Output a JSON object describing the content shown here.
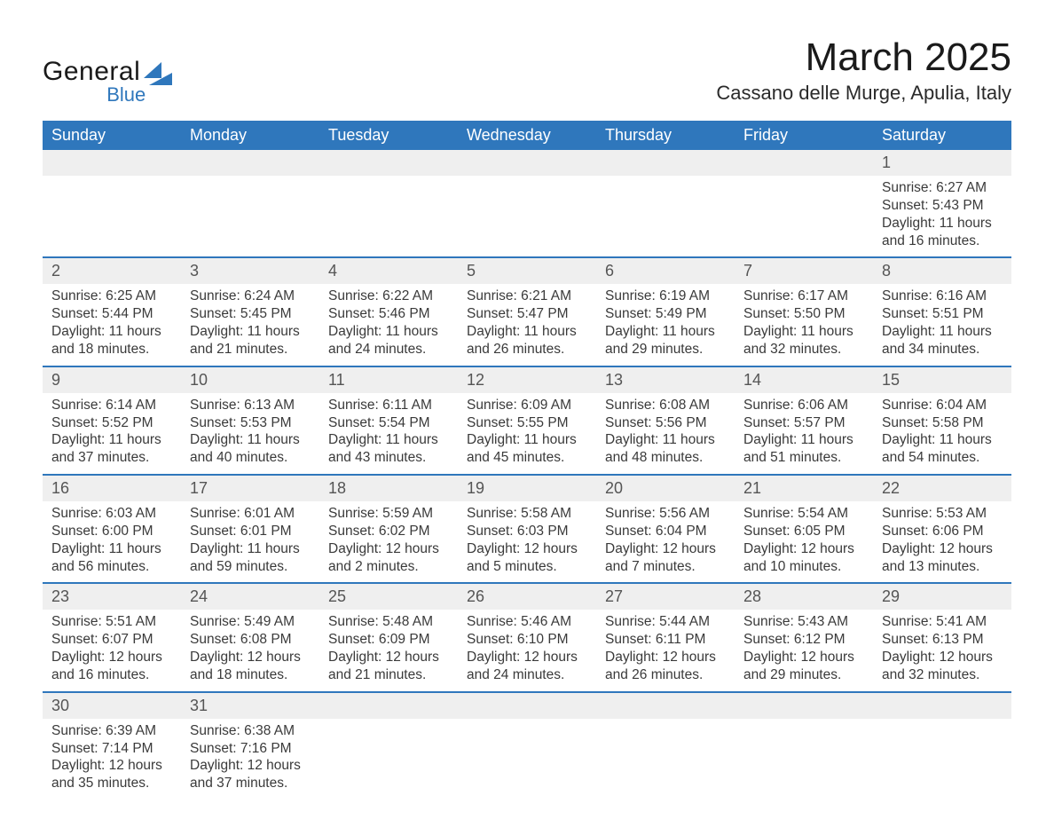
{
  "brand": {
    "name_a": "General",
    "name_b": "Blue",
    "accent": "#2f77bc"
  },
  "header": {
    "title": "March 2025",
    "location": "Cassano delle Murge, Apulia, Italy"
  },
  "calendar": {
    "columns": [
      "Sunday",
      "Monday",
      "Tuesday",
      "Wednesday",
      "Thursday",
      "Friday",
      "Saturday"
    ],
    "header_bg": "#2f77bc",
    "header_fg": "#ffffff",
    "row_divider": "#2f77bc",
    "daynum_bg": "#efefef",
    "text_color": "#3a3a3a",
    "weeks": [
      [
        null,
        null,
        null,
        null,
        null,
        null,
        {
          "n": "1",
          "sunrise": "6:27 AM",
          "sunset": "5:43 PM",
          "daylight": "11 hours and 16 minutes."
        }
      ],
      [
        {
          "n": "2",
          "sunrise": "6:25 AM",
          "sunset": "5:44 PM",
          "daylight": "11 hours and 18 minutes."
        },
        {
          "n": "3",
          "sunrise": "6:24 AM",
          "sunset": "5:45 PM",
          "daylight": "11 hours and 21 minutes."
        },
        {
          "n": "4",
          "sunrise": "6:22 AM",
          "sunset": "5:46 PM",
          "daylight": "11 hours and 24 minutes."
        },
        {
          "n": "5",
          "sunrise": "6:21 AM",
          "sunset": "5:47 PM",
          "daylight": "11 hours and 26 minutes."
        },
        {
          "n": "6",
          "sunrise": "6:19 AM",
          "sunset": "5:49 PM",
          "daylight": "11 hours and 29 minutes."
        },
        {
          "n": "7",
          "sunrise": "6:17 AM",
          "sunset": "5:50 PM",
          "daylight": "11 hours and 32 minutes."
        },
        {
          "n": "8",
          "sunrise": "6:16 AM",
          "sunset": "5:51 PM",
          "daylight": "11 hours and 34 minutes."
        }
      ],
      [
        {
          "n": "9",
          "sunrise": "6:14 AM",
          "sunset": "5:52 PM",
          "daylight": "11 hours and 37 minutes."
        },
        {
          "n": "10",
          "sunrise": "6:13 AM",
          "sunset": "5:53 PM",
          "daylight": "11 hours and 40 minutes."
        },
        {
          "n": "11",
          "sunrise": "6:11 AM",
          "sunset": "5:54 PM",
          "daylight": "11 hours and 43 minutes."
        },
        {
          "n": "12",
          "sunrise": "6:09 AM",
          "sunset": "5:55 PM",
          "daylight": "11 hours and 45 minutes."
        },
        {
          "n": "13",
          "sunrise": "6:08 AM",
          "sunset": "5:56 PM",
          "daylight": "11 hours and 48 minutes."
        },
        {
          "n": "14",
          "sunrise": "6:06 AM",
          "sunset": "5:57 PM",
          "daylight": "11 hours and 51 minutes."
        },
        {
          "n": "15",
          "sunrise": "6:04 AM",
          "sunset": "5:58 PM",
          "daylight": "11 hours and 54 minutes."
        }
      ],
      [
        {
          "n": "16",
          "sunrise": "6:03 AM",
          "sunset": "6:00 PM",
          "daylight": "11 hours and 56 minutes."
        },
        {
          "n": "17",
          "sunrise": "6:01 AM",
          "sunset": "6:01 PM",
          "daylight": "11 hours and 59 minutes."
        },
        {
          "n": "18",
          "sunrise": "5:59 AM",
          "sunset": "6:02 PM",
          "daylight": "12 hours and 2 minutes."
        },
        {
          "n": "19",
          "sunrise": "5:58 AM",
          "sunset": "6:03 PM",
          "daylight": "12 hours and 5 minutes."
        },
        {
          "n": "20",
          "sunrise": "5:56 AM",
          "sunset": "6:04 PM",
          "daylight": "12 hours and 7 minutes."
        },
        {
          "n": "21",
          "sunrise": "5:54 AM",
          "sunset": "6:05 PM",
          "daylight": "12 hours and 10 minutes."
        },
        {
          "n": "22",
          "sunrise": "5:53 AM",
          "sunset": "6:06 PM",
          "daylight": "12 hours and 13 minutes."
        }
      ],
      [
        {
          "n": "23",
          "sunrise": "5:51 AM",
          "sunset": "6:07 PM",
          "daylight": "12 hours and 16 minutes."
        },
        {
          "n": "24",
          "sunrise": "5:49 AM",
          "sunset": "6:08 PM",
          "daylight": "12 hours and 18 minutes."
        },
        {
          "n": "25",
          "sunrise": "5:48 AM",
          "sunset": "6:09 PM",
          "daylight": "12 hours and 21 minutes."
        },
        {
          "n": "26",
          "sunrise": "5:46 AM",
          "sunset": "6:10 PM",
          "daylight": "12 hours and 24 minutes."
        },
        {
          "n": "27",
          "sunrise": "5:44 AM",
          "sunset": "6:11 PM",
          "daylight": "12 hours and 26 minutes."
        },
        {
          "n": "28",
          "sunrise": "5:43 AM",
          "sunset": "6:12 PM",
          "daylight": "12 hours and 29 minutes."
        },
        {
          "n": "29",
          "sunrise": "5:41 AM",
          "sunset": "6:13 PM",
          "daylight": "12 hours and 32 minutes."
        }
      ],
      [
        {
          "n": "30",
          "sunrise": "6:39 AM",
          "sunset": "7:14 PM",
          "daylight": "12 hours and 35 minutes."
        },
        {
          "n": "31",
          "sunrise": "6:38 AM",
          "sunset": "7:16 PM",
          "daylight": "12 hours and 37 minutes."
        },
        null,
        null,
        null,
        null,
        null
      ]
    ],
    "labels": {
      "sunrise": "Sunrise: ",
      "sunset": "Sunset: ",
      "daylight": "Daylight: "
    }
  }
}
